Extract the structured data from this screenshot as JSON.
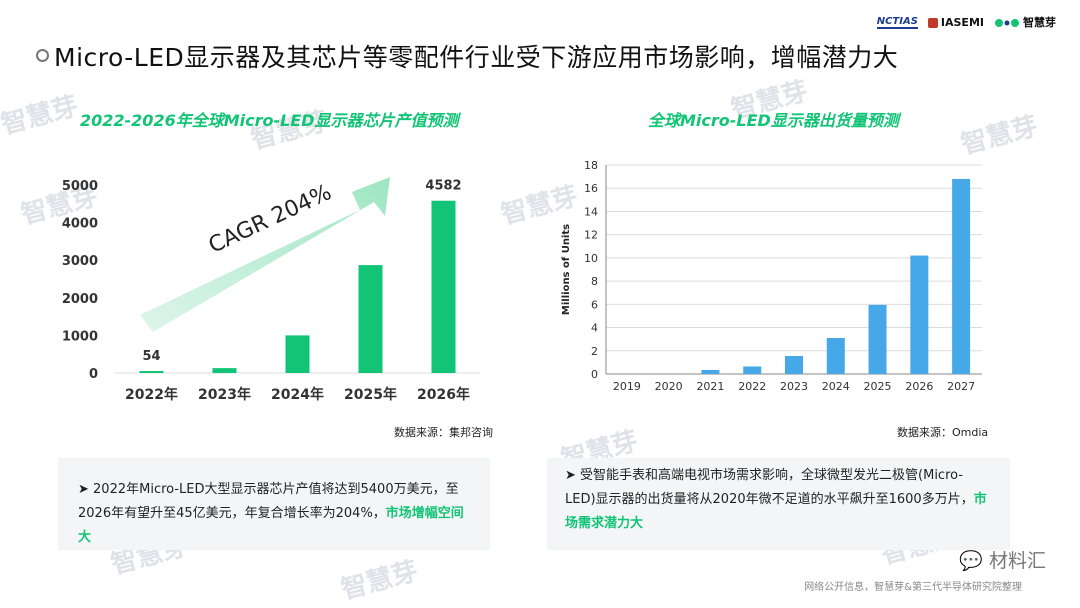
{
  "page": {
    "title": "Micro-LED显示器及其芯片等零配件行业受下游应用市场影响，增幅潜力大",
    "logos": [
      "NCTIAS",
      "IASEMI",
      "智慧芽"
    ],
    "watermark": "智慧芽",
    "brand": "材料汇",
    "footer_note": "网络公开信息，智慧芽&第三代半导体研究院整理"
  },
  "left": {
    "subtitle": "2022-2026年全球Micro-LED显示器芯片产值预测",
    "source": "数据来源：集邦咨询",
    "cagr_label": "CAGR 204%",
    "text_main": "2022年Micro-LED大型显示器芯片产值将达到5400万美元，至2026年有望升至45亿美元，年复合增长率为204%，",
    "text_highlight": "市场增幅空间大"
  },
  "right": {
    "subtitle": "全球Micro-LED显示器出货量预测",
    "source": "数据来源：Omdia",
    "text_main": "受智能手表和高端电视市场需求影响，全球微型发光二极管(Micro-LED)显示器的出货量将从2020年微不足道的水平飙升至1600多万片，",
    "text_highlight": "市场需求潜力大"
  },
  "chart_data": [
    {
      "type": "bar",
      "categories": [
        "2022年",
        "2023年",
        "2024年",
        "2025年",
        "2026年"
      ],
      "values": [
        54,
        130,
        1000,
        2870,
        4582
      ],
      "data_labels": {
        "2022年": "54",
        "2026年": "4582"
      },
      "ylim": [
        0,
        5000
      ],
      "yticks": [
        0,
        1000,
        2000,
        3000,
        4000,
        5000
      ],
      "color": "#12c476",
      "grid": false
    },
    {
      "type": "bar",
      "categories": [
        "2019",
        "2020",
        "2021",
        "2022",
        "2023",
        "2024",
        "2025",
        "2026",
        "2027"
      ],
      "values": [
        0,
        0,
        0.35,
        0.65,
        1.55,
        3.1,
        5.95,
        10.2,
        16.8
      ],
      "ylabel": "Millions of Units",
      "ylim": [
        0,
        18
      ],
      "yticks": [
        0,
        2,
        4,
        6,
        8,
        10,
        12,
        14,
        16,
        18
      ],
      "color": "#46a8e8",
      "grid": true
    }
  ]
}
